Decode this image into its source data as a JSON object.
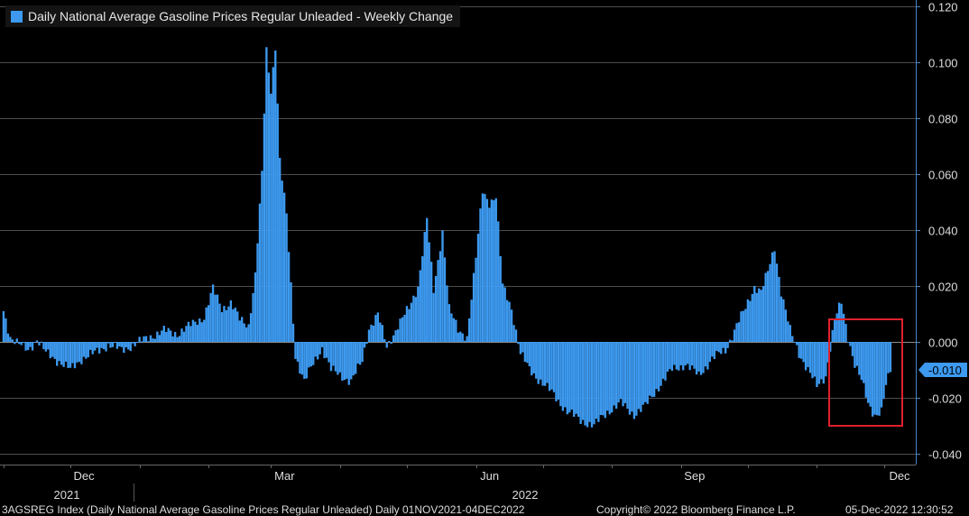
{
  "chart_data": {
    "type": "bar",
    "title": "Daily National Average Gasoline Prices Regular Unleaded - Weekly Change",
    "series": [
      {
        "name": "Daily National Average Gasoline Prices Regular Unleaded - Weekly Change"
      }
    ],
    "x_start": "2021-11-01",
    "x_end": "2022-12-04",
    "month_labels": [
      "Dec",
      "Mar",
      "Jun",
      "Sep",
      "Dec"
    ],
    "year_labels": [
      "2021",
      "2022"
    ],
    "y_ticks": [
      "0.120",
      "0.100",
      "0.080",
      "0.060",
      "0.040",
      "0.020",
      "0.000",
      "-0.020",
      "-0.040"
    ],
    "ylim": [
      -0.045,
      0.12
    ],
    "last_value_label": "-0.010",
    "bar_color": "#3d9af0",
    "highlight_box_color": "#e0202c",
    "anchors": [
      [
        "2021-11-01",
        0.011
      ],
      [
        "2021-11-04",
        0.002
      ],
      [
        "2021-11-08",
        -0.001
      ],
      [
        "2021-11-12",
        -0.003
      ],
      [
        "2021-11-16",
        0.001
      ],
      [
        "2021-11-20",
        -0.004
      ],
      [
        "2021-11-26",
        -0.007
      ],
      [
        "2021-12-01",
        -0.01
      ],
      [
        "2021-12-06",
        -0.006
      ],
      [
        "2021-12-12",
        -0.004
      ],
      [
        "2021-12-18",
        -0.001
      ],
      [
        "2021-12-24",
        -0.003
      ],
      [
        "2022-01-01",
        0.0
      ],
      [
        "2022-01-06",
        0.002
      ],
      [
        "2022-01-12",
        0.004
      ],
      [
        "2022-01-18",
        0.003
      ],
      [
        "2022-01-24",
        0.006
      ],
      [
        "2022-01-30",
        0.009
      ],
      [
        "2022-02-03",
        0.019
      ],
      [
        "2022-02-07",
        0.012
      ],
      [
        "2022-02-11",
        0.014
      ],
      [
        "2022-02-15",
        0.008
      ],
      [
        "2022-02-19",
        0.006
      ],
      [
        "2022-02-22",
        0.024
      ],
      [
        "2022-02-25",
        0.06
      ],
      [
        "2022-02-27",
        0.104
      ],
      [
        "2022-03-01",
        0.09
      ],
      [
        "2022-03-03",
        0.106
      ],
      [
        "2022-03-05",
        0.065
      ],
      [
        "2022-03-08",
        0.045
      ],
      [
        "2022-03-12",
        -0.005
      ],
      [
        "2022-03-16",
        -0.014
      ],
      [
        "2022-03-20",
        -0.008
      ],
      [
        "2022-03-24",
        -0.002
      ],
      [
        "2022-03-28",
        -0.01
      ],
      [
        "2022-04-01",
        -0.012
      ],
      [
        "2022-04-06",
        -0.014
      ],
      [
        "2022-04-11",
        -0.007
      ],
      [
        "2022-04-14",
        0.005
      ],
      [
        "2022-04-18",
        0.01
      ],
      [
        "2022-04-22",
        -0.002
      ],
      [
        "2022-04-27",
        0.006
      ],
      [
        "2022-05-02",
        0.012
      ],
      [
        "2022-05-06",
        0.02
      ],
      [
        "2022-05-10",
        0.044
      ],
      [
        "2022-05-13",
        0.018
      ],
      [
        "2022-05-17",
        0.04
      ],
      [
        "2022-05-20",
        0.012
      ],
      [
        "2022-05-24",
        0.004
      ],
      [
        "2022-05-28",
        0.002
      ],
      [
        "2022-06-01",
        0.03
      ],
      [
        "2022-06-04",
        0.054
      ],
      [
        "2022-06-07",
        0.05
      ],
      [
        "2022-06-10",
        0.052
      ],
      [
        "2022-06-13",
        0.02
      ],
      [
        "2022-06-17",
        0.012
      ],
      [
        "2022-06-21",
        -0.004
      ],
      [
        "2022-06-25",
        -0.01
      ],
      [
        "2022-06-30",
        -0.014
      ],
      [
        "2022-07-06",
        -0.019
      ],
      [
        "2022-07-12",
        -0.025
      ],
      [
        "2022-07-18",
        -0.028
      ],
      [
        "2022-07-24",
        -0.03
      ],
      [
        "2022-07-30",
        -0.025
      ],
      [
        "2022-08-05",
        -0.022
      ],
      [
        "2022-08-11",
        -0.026
      ],
      [
        "2022-08-16",
        -0.023
      ],
      [
        "2022-08-22",
        -0.016
      ],
      [
        "2022-08-28",
        -0.01
      ],
      [
        "2022-09-03",
        -0.008
      ],
      [
        "2022-09-09",
        -0.012
      ],
      [
        "2022-09-15",
        -0.006
      ],
      [
        "2022-09-21",
        -0.003
      ],
      [
        "2022-09-26",
        0.006
      ],
      [
        "2022-09-30",
        0.012
      ],
      [
        "2022-10-04",
        0.02
      ],
      [
        "2022-10-07",
        0.018
      ],
      [
        "2022-10-10",
        0.025
      ],
      [
        "2022-10-13",
        0.034
      ],
      [
        "2022-10-16",
        0.018
      ],
      [
        "2022-10-20",
        0.004
      ],
      [
        "2022-10-24",
        -0.004
      ],
      [
        "2022-10-28",
        -0.01
      ],
      [
        "2022-11-01",
        -0.016
      ],
      [
        "2022-11-05",
        -0.012
      ],
      [
        "2022-11-09",
        0.008
      ],
      [
        "2022-11-12",
        0.014
      ],
      [
        "2022-11-15",
        0.002
      ],
      [
        "2022-11-18",
        -0.008
      ],
      [
        "2022-11-21",
        -0.014
      ],
      [
        "2022-11-24",
        -0.022
      ],
      [
        "2022-11-27",
        -0.026
      ],
      [
        "2022-11-30",
        -0.025
      ],
      [
        "2022-12-02",
        -0.016
      ],
      [
        "2022-12-04",
        -0.01
      ]
    ]
  },
  "footer": {
    "index_text": "3AGSREG Index (Daily National Average Gasoline Prices Regular Unleaded)  Daily 01NOV2021-04DEC2022",
    "copyright": "Copyright© 2022 Bloomberg Finance L.P.",
    "timestamp": "05-Dec-2022 12:30:52"
  }
}
